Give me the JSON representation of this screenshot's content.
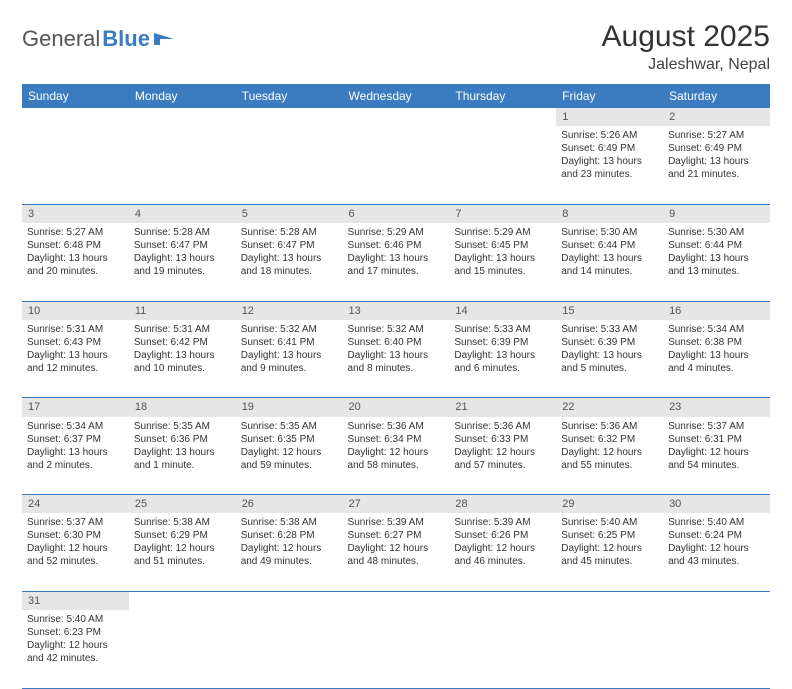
{
  "logo": {
    "textA": "General",
    "textB": "Blue"
  },
  "title": "August 2025",
  "location": "Jaleshwar, Nepal",
  "weekdays": [
    "Sunday",
    "Monday",
    "Tuesday",
    "Wednesday",
    "Thursday",
    "Friday",
    "Saturday"
  ],
  "colors": {
    "header_bg": "#3b7bbf",
    "header_fg": "#ffffff",
    "daynum_bg": "#e6e6e6",
    "border": "#3b7bbf"
  },
  "weeks": [
    {
      "nums": [
        "",
        "",
        "",
        "",
        "",
        "1",
        "2"
      ],
      "cells": [
        null,
        null,
        null,
        null,
        null,
        {
          "sunrise": "Sunrise: 5:26 AM",
          "sunset": "Sunset: 6:49 PM",
          "day1": "Daylight: 13 hours",
          "day2": "and 23 minutes."
        },
        {
          "sunrise": "Sunrise: 5:27 AM",
          "sunset": "Sunset: 6:49 PM",
          "day1": "Daylight: 13 hours",
          "day2": "and 21 minutes."
        }
      ]
    },
    {
      "nums": [
        "3",
        "4",
        "5",
        "6",
        "7",
        "8",
        "9"
      ],
      "cells": [
        {
          "sunrise": "Sunrise: 5:27 AM",
          "sunset": "Sunset: 6:48 PM",
          "day1": "Daylight: 13 hours",
          "day2": "and 20 minutes."
        },
        {
          "sunrise": "Sunrise: 5:28 AM",
          "sunset": "Sunset: 6:47 PM",
          "day1": "Daylight: 13 hours",
          "day2": "and 19 minutes."
        },
        {
          "sunrise": "Sunrise: 5:28 AM",
          "sunset": "Sunset: 6:47 PM",
          "day1": "Daylight: 13 hours",
          "day2": "and 18 minutes."
        },
        {
          "sunrise": "Sunrise: 5:29 AM",
          "sunset": "Sunset: 6:46 PM",
          "day1": "Daylight: 13 hours",
          "day2": "and 17 minutes."
        },
        {
          "sunrise": "Sunrise: 5:29 AM",
          "sunset": "Sunset: 6:45 PM",
          "day1": "Daylight: 13 hours",
          "day2": "and 15 minutes."
        },
        {
          "sunrise": "Sunrise: 5:30 AM",
          "sunset": "Sunset: 6:44 PM",
          "day1": "Daylight: 13 hours",
          "day2": "and 14 minutes."
        },
        {
          "sunrise": "Sunrise: 5:30 AM",
          "sunset": "Sunset: 6:44 PM",
          "day1": "Daylight: 13 hours",
          "day2": "and 13 minutes."
        }
      ]
    },
    {
      "nums": [
        "10",
        "11",
        "12",
        "13",
        "14",
        "15",
        "16"
      ],
      "cells": [
        {
          "sunrise": "Sunrise: 5:31 AM",
          "sunset": "Sunset: 6:43 PM",
          "day1": "Daylight: 13 hours",
          "day2": "and 12 minutes."
        },
        {
          "sunrise": "Sunrise: 5:31 AM",
          "sunset": "Sunset: 6:42 PM",
          "day1": "Daylight: 13 hours",
          "day2": "and 10 minutes."
        },
        {
          "sunrise": "Sunrise: 5:32 AM",
          "sunset": "Sunset: 6:41 PM",
          "day1": "Daylight: 13 hours",
          "day2": "and 9 minutes."
        },
        {
          "sunrise": "Sunrise: 5:32 AM",
          "sunset": "Sunset: 6:40 PM",
          "day1": "Daylight: 13 hours",
          "day2": "and 8 minutes."
        },
        {
          "sunrise": "Sunrise: 5:33 AM",
          "sunset": "Sunset: 6:39 PM",
          "day1": "Daylight: 13 hours",
          "day2": "and 6 minutes."
        },
        {
          "sunrise": "Sunrise: 5:33 AM",
          "sunset": "Sunset: 6:39 PM",
          "day1": "Daylight: 13 hours",
          "day2": "and 5 minutes."
        },
        {
          "sunrise": "Sunrise: 5:34 AM",
          "sunset": "Sunset: 6:38 PM",
          "day1": "Daylight: 13 hours",
          "day2": "and 4 minutes."
        }
      ]
    },
    {
      "nums": [
        "17",
        "18",
        "19",
        "20",
        "21",
        "22",
        "23"
      ],
      "cells": [
        {
          "sunrise": "Sunrise: 5:34 AM",
          "sunset": "Sunset: 6:37 PM",
          "day1": "Daylight: 13 hours",
          "day2": "and 2 minutes."
        },
        {
          "sunrise": "Sunrise: 5:35 AM",
          "sunset": "Sunset: 6:36 PM",
          "day1": "Daylight: 13 hours",
          "day2": "and 1 minute."
        },
        {
          "sunrise": "Sunrise: 5:35 AM",
          "sunset": "Sunset: 6:35 PM",
          "day1": "Daylight: 12 hours",
          "day2": "and 59 minutes."
        },
        {
          "sunrise": "Sunrise: 5:36 AM",
          "sunset": "Sunset: 6:34 PM",
          "day1": "Daylight: 12 hours",
          "day2": "and 58 minutes."
        },
        {
          "sunrise": "Sunrise: 5:36 AM",
          "sunset": "Sunset: 6:33 PM",
          "day1": "Daylight: 12 hours",
          "day2": "and 57 minutes."
        },
        {
          "sunrise": "Sunrise: 5:36 AM",
          "sunset": "Sunset: 6:32 PM",
          "day1": "Daylight: 12 hours",
          "day2": "and 55 minutes."
        },
        {
          "sunrise": "Sunrise: 5:37 AM",
          "sunset": "Sunset: 6:31 PM",
          "day1": "Daylight: 12 hours",
          "day2": "and 54 minutes."
        }
      ]
    },
    {
      "nums": [
        "24",
        "25",
        "26",
        "27",
        "28",
        "29",
        "30"
      ],
      "cells": [
        {
          "sunrise": "Sunrise: 5:37 AM",
          "sunset": "Sunset: 6:30 PM",
          "day1": "Daylight: 12 hours",
          "day2": "and 52 minutes."
        },
        {
          "sunrise": "Sunrise: 5:38 AM",
          "sunset": "Sunset: 6:29 PM",
          "day1": "Daylight: 12 hours",
          "day2": "and 51 minutes."
        },
        {
          "sunrise": "Sunrise: 5:38 AM",
          "sunset": "Sunset: 6:28 PM",
          "day1": "Daylight: 12 hours",
          "day2": "and 49 minutes."
        },
        {
          "sunrise": "Sunrise: 5:39 AM",
          "sunset": "Sunset: 6:27 PM",
          "day1": "Daylight: 12 hours",
          "day2": "and 48 minutes."
        },
        {
          "sunrise": "Sunrise: 5:39 AM",
          "sunset": "Sunset: 6:26 PM",
          "day1": "Daylight: 12 hours",
          "day2": "and 46 minutes."
        },
        {
          "sunrise": "Sunrise: 5:40 AM",
          "sunset": "Sunset: 6:25 PM",
          "day1": "Daylight: 12 hours",
          "day2": "and 45 minutes."
        },
        {
          "sunrise": "Sunrise: 5:40 AM",
          "sunset": "Sunset: 6:24 PM",
          "day1": "Daylight: 12 hours",
          "day2": "and 43 minutes."
        }
      ]
    },
    {
      "nums": [
        "31",
        "",
        "",
        "",
        "",
        "",
        ""
      ],
      "cells": [
        {
          "sunrise": "Sunrise: 5:40 AM",
          "sunset": "Sunset: 6:23 PM",
          "day1": "Daylight: 12 hours",
          "day2": "and 42 minutes."
        },
        null,
        null,
        null,
        null,
        null,
        null
      ]
    }
  ]
}
